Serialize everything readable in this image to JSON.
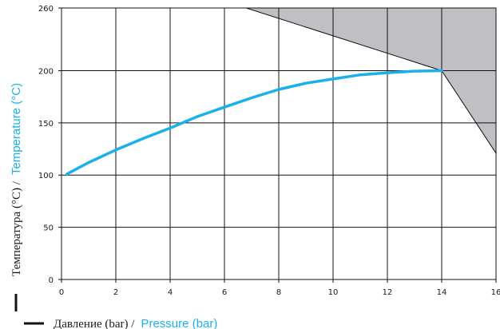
{
  "colors": {
    "curve": "#1ab0ec",
    "region": "#c0c0c4",
    "grid": "#111111",
    "label_en": "#1ab0ec"
  },
  "chart_data": {
    "type": "line",
    "xlabel_ru": "Давление (bar) /",
    "xlabel_en": "Pressure (bar)",
    "ylabel_ru": "Температура (°C) /",
    "ylabel_en": "Temperature (°C)",
    "xlim": [
      0,
      16
    ],
    "ylim": [
      0,
      260
    ],
    "xticks": [
      "0",
      "2",
      "4",
      "6",
      "8",
      "10",
      "12",
      "14",
      "16"
    ],
    "yticks": [
      "0",
      "50",
      "100",
      "150",
      "200",
      "260"
    ],
    "grid": true,
    "series": [
      {
        "x": [
          0.2,
          1,
          2,
          3,
          4,
          5,
          6,
          7,
          8,
          9,
          10,
          11,
          12,
          13,
          14
        ],
        "y": [
          101,
          112,
          124,
          135,
          145,
          156,
          165,
          174,
          182,
          188,
          192,
          196,
          198,
          199.5,
          200
        ]
      }
    ],
    "shaded_region": {
      "x": [
        6.8,
        16,
        16,
        14
      ],
      "y": [
        260,
        260,
        121,
        200
      ]
    }
  }
}
